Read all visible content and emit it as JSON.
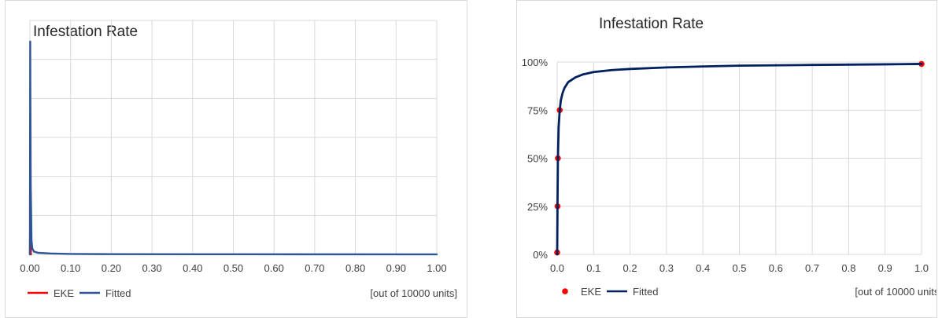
{
  "chart_data": [
    {
      "type": "line",
      "title": "Infestation Rate",
      "unit_note": "[out of 10000 units]",
      "xlim": [
        0,
        1
      ],
      "x_ticks": [
        "0.00",
        "0.10",
        "0.20",
        "0.30",
        "0.40",
        "0.50",
        "0.60",
        "0.70",
        "0.80",
        "0.90",
        "1.00"
      ],
      "ylim": [
        0,
        1
      ],
      "y_ticks_shown": false,
      "grid": true,
      "legend_position": "bottom-left",
      "series": [
        {
          "name": "EKE",
          "style": "line",
          "color": "#ff0000",
          "x": [
            0.0,
            0.001,
            0.002,
            0.0025
          ],
          "y": [
            0.0,
            0.26,
            0.26,
            0.0
          ]
        },
        {
          "name": "Fitted",
          "style": "line",
          "color": "#2f5597",
          "x": [
            0.0,
            0.0008,
            0.001,
            0.002,
            0.004,
            0.006,
            0.01,
            0.02,
            0.05,
            0.1,
            0.2,
            0.5,
            1.0
          ],
          "y": [
            0.0,
            0.91,
            0.75,
            0.3,
            0.06,
            0.025,
            0.012,
            0.007,
            0.004,
            0.002,
            0.001,
            0.0005,
            0.0003
          ]
        }
      ]
    },
    {
      "type": "line",
      "title": "Infestation Rate",
      "unit_note": "[out of 10000 units]",
      "xlim": [
        0,
        1
      ],
      "x_ticks": [
        "0.0",
        "0.1",
        "0.2",
        "0.3",
        "0.4",
        "0.5",
        "0.6",
        "0.7",
        "0.8",
        "0.9",
        "1.0"
      ],
      "ylim": [
        0,
        1
      ],
      "y_ticks": [
        "0%",
        "25%",
        "50%",
        "75%",
        "100%"
      ],
      "grid": true,
      "legend_position": "bottom-left",
      "series": [
        {
          "name": "EKE",
          "style": "scatter",
          "color": "#ff0000",
          "x": [
            0.0,
            0.001,
            0.002,
            0.007,
            1.0
          ],
          "y": [
            0.01,
            0.25,
            0.5,
            0.75,
            0.99
          ]
        },
        {
          "name": "Fitted",
          "style": "line",
          "color": "#002060",
          "x": [
            0.0,
            0.001,
            0.002,
            0.004,
            0.007,
            0.01,
            0.015,
            0.02,
            0.03,
            0.05,
            0.07,
            0.1,
            0.15,
            0.2,
            0.3,
            0.4,
            0.5,
            0.7,
            0.9,
            1.0
          ],
          "y": [
            0.0,
            0.28,
            0.5,
            0.66,
            0.75,
            0.8,
            0.84,
            0.865,
            0.895,
            0.92,
            0.935,
            0.948,
            0.958,
            0.964,
            0.972,
            0.977,
            0.981,
            0.985,
            0.988,
            0.99
          ]
        }
      ]
    }
  ]
}
